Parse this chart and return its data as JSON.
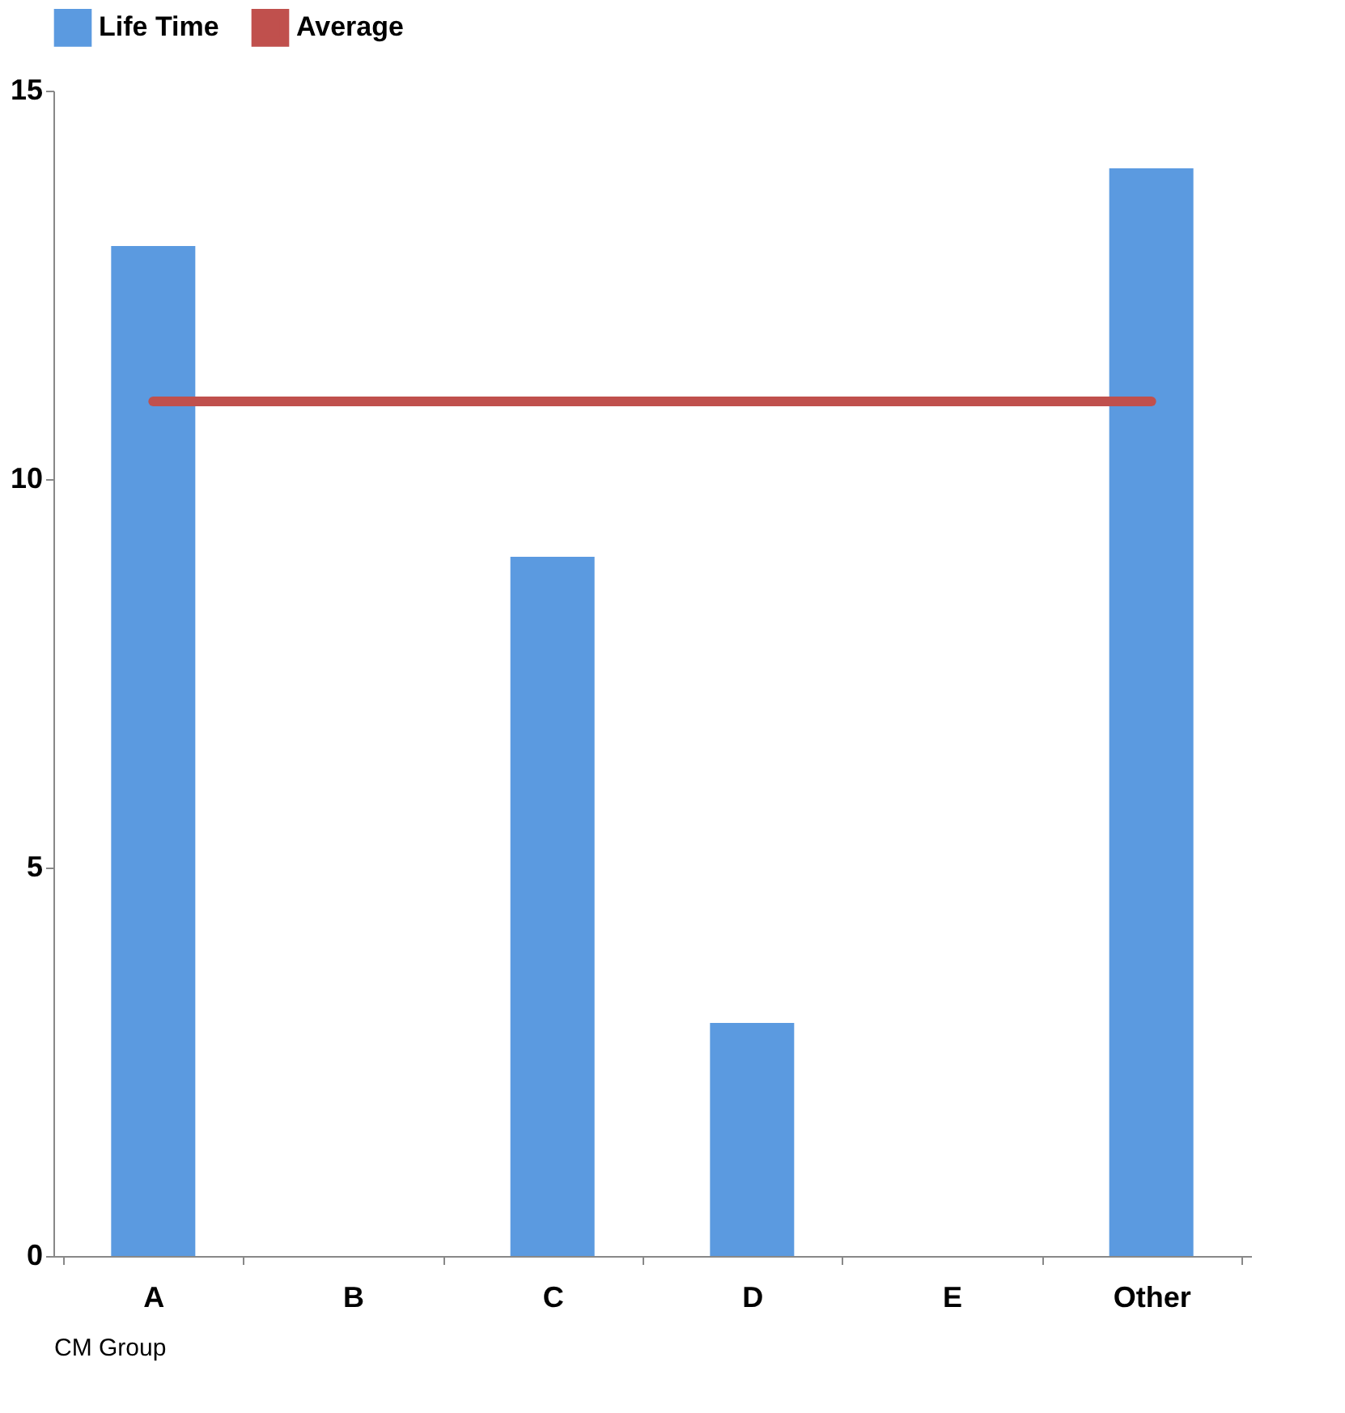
{
  "chart_data": {
    "type": "bar",
    "categories": [
      "A",
      "B",
      "C",
      "D",
      "E",
      "Other"
    ],
    "series": [
      {
        "name": "Life Time",
        "color": "#5b9ae0",
        "values": [
          13,
          0,
          9,
          3,
          0,
          14
        ]
      },
      {
        "name": "Average",
        "type": "line",
        "color": "#c0504d",
        "values": [
          11,
          11,
          11,
          11,
          11,
          11
        ]
      }
    ],
    "xlabel": "CM Group",
    "ylim": [
      0,
      15
    ],
    "yticks": [
      0,
      5,
      10,
      15
    ],
    "grid": false,
    "legend": "top"
  }
}
